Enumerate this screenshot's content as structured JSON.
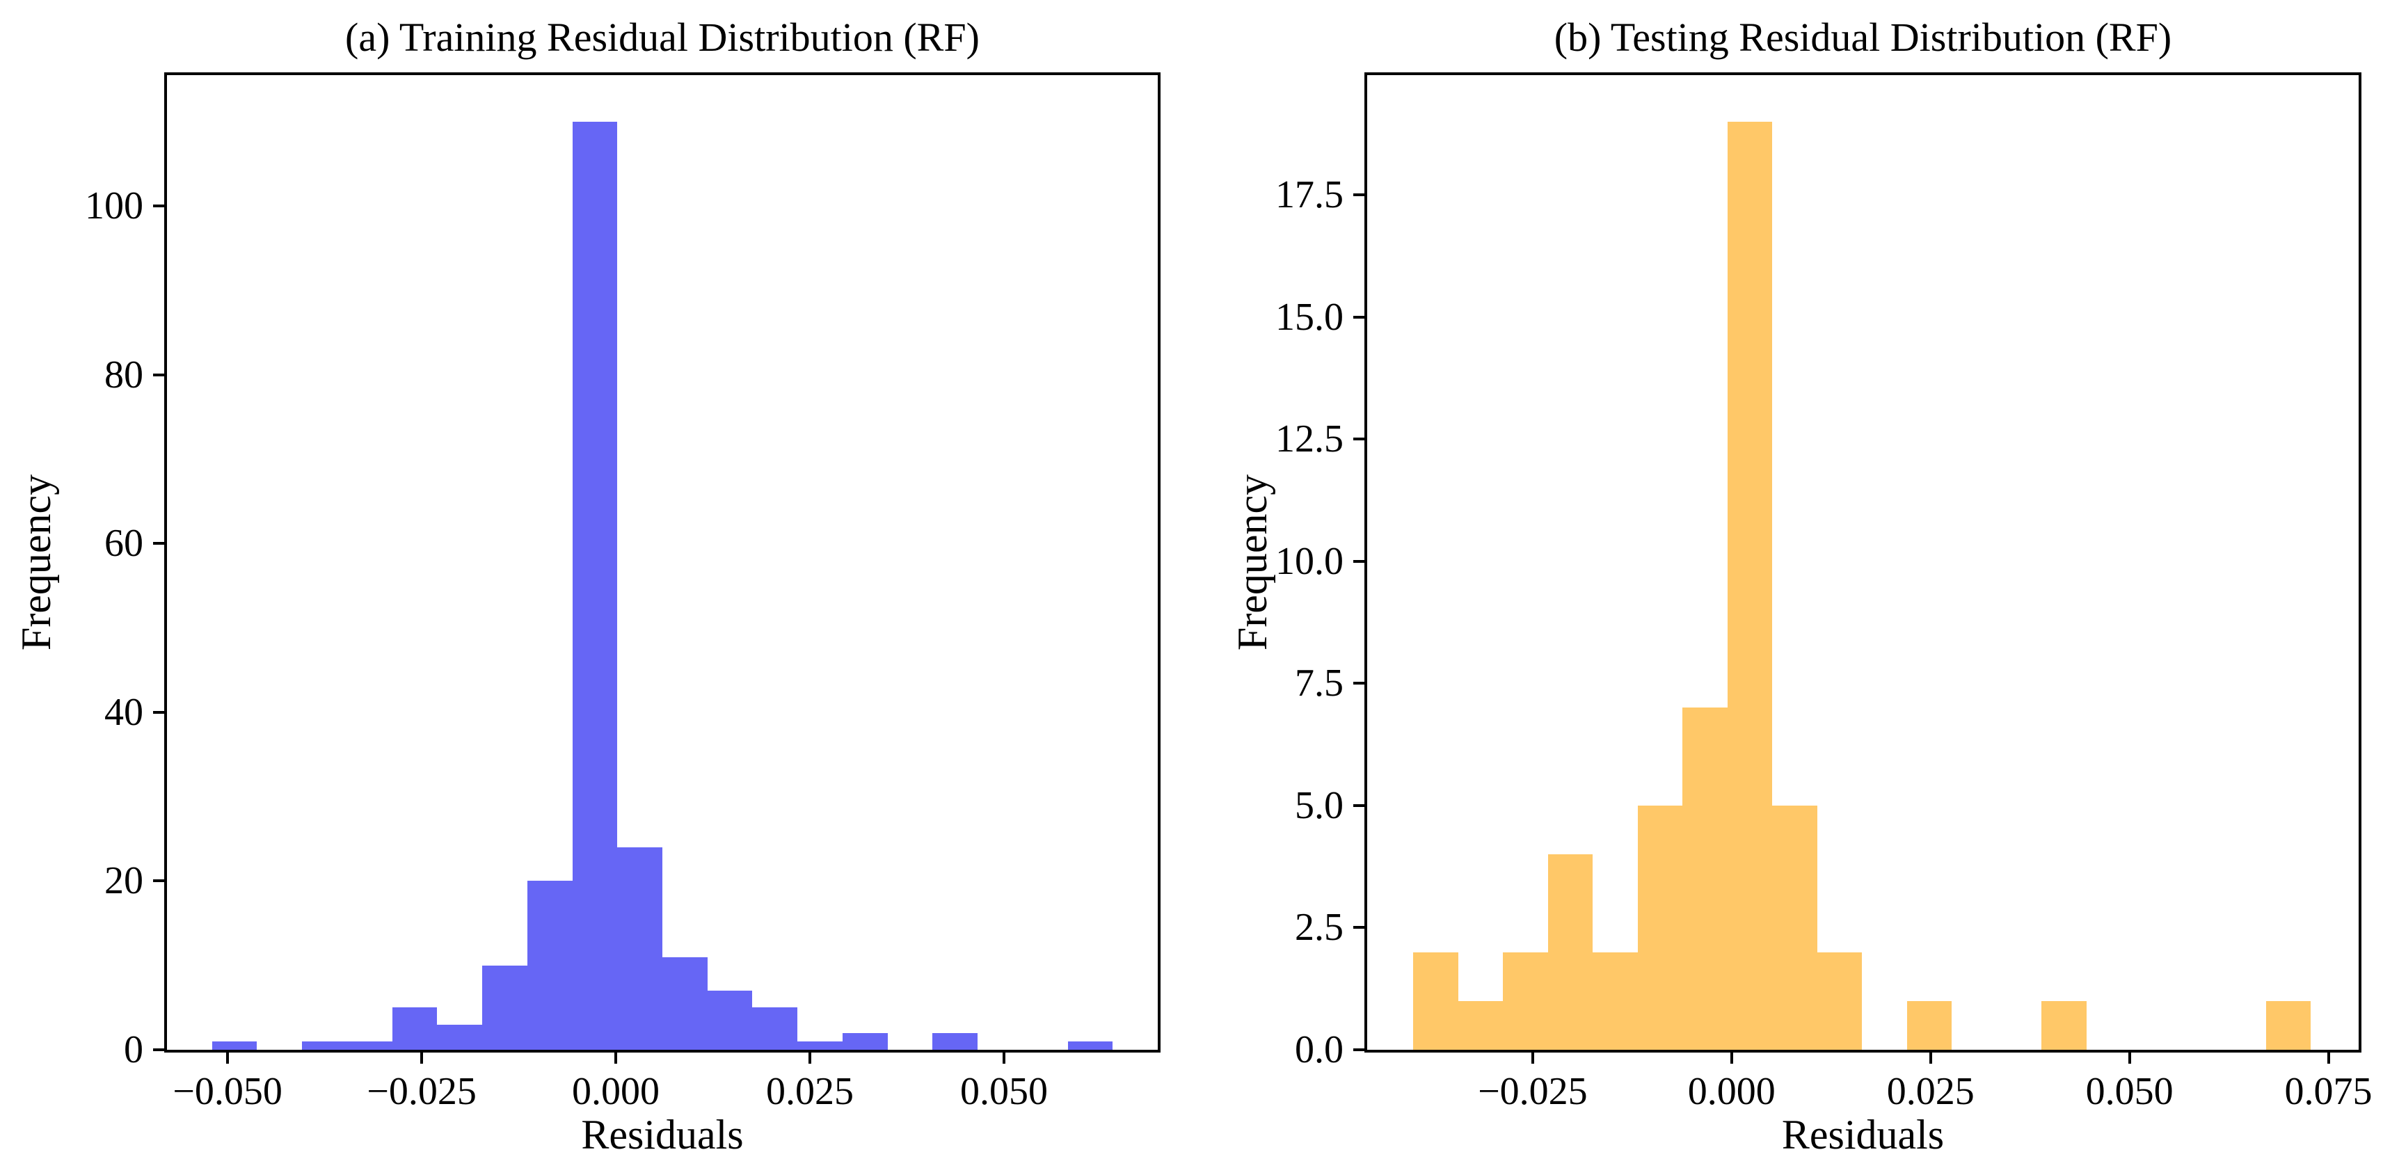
{
  "figure": {
    "background_color": "#ffffff",
    "text_color": "#000000",
    "spine_color": "#000000"
  },
  "chart_data": [
    {
      "type": "bar",
      "subtype": "histogram",
      "id": "training-residuals",
      "title": "(a) Training Residual Distribution (RF)",
      "xlabel": "Residuals",
      "ylabel": "Frequency",
      "bar_color": "#6666F5",
      "grid": false,
      "legend": "none",
      "bin_start": -0.052,
      "bin_width": 0.0058,
      "counts": [
        1,
        0,
        1,
        1,
        5,
        3,
        10,
        20,
        110,
        24,
        11,
        7,
        5,
        1,
        2,
        0,
        2,
        0,
        0,
        1
      ],
      "total_samples": 204,
      "peak_count": 110,
      "xlim": [
        -0.0578,
        0.0698
      ],
      "ylim": [
        0,
        115.5
      ],
      "xticks": [
        -0.05,
        -0.025,
        0.0,
        0.025,
        0.05
      ],
      "xtick_labels": [
        "−0.050",
        "−0.025",
        "0.000",
        "0.025",
        "0.050"
      ],
      "yticks": [
        0,
        20,
        40,
        60,
        80,
        100
      ],
      "ytick_labels": [
        "0",
        "20",
        "40",
        "60",
        "80",
        "100"
      ]
    },
    {
      "type": "bar",
      "subtype": "histogram",
      "id": "testing-residuals",
      "title": "(b) Testing Residual Distribution (RF)",
      "xlabel": "Residuals",
      "ylabel": "Frequency",
      "bar_color": "#FFC868",
      "grid": false,
      "legend": "none",
      "bin_start": -0.04,
      "bin_width": 0.00564,
      "counts": [
        2,
        1,
        2,
        4,
        2,
        5,
        7,
        19,
        5,
        2,
        0,
        1,
        0,
        0,
        1,
        0,
        0,
        0,
        0,
        1
      ],
      "total_samples": 52,
      "peak_count": 19,
      "xlim": [
        -0.0458,
        0.0788
      ],
      "ylim": [
        0,
        19.95
      ],
      "xticks": [
        -0.025,
        0.0,
        0.025,
        0.05,
        0.075
      ],
      "xtick_labels": [
        "−0.025",
        "0.000",
        "0.025",
        "0.050",
        "0.075"
      ],
      "yticks": [
        0.0,
        2.5,
        5.0,
        7.5,
        10.0,
        12.5,
        15.0,
        17.5
      ],
      "ytick_labels": [
        "0.0",
        "2.5",
        "5.0",
        "7.5",
        "10.0",
        "12.5",
        "15.0",
        "17.5"
      ]
    }
  ]
}
